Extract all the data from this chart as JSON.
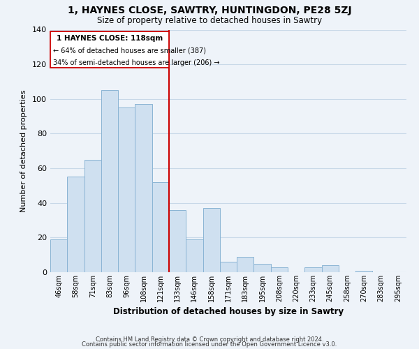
{
  "title": "1, HAYNES CLOSE, SAWTRY, HUNTINGDON, PE28 5ZJ",
  "subtitle": "Size of property relative to detached houses in Sawtry",
  "xlabel": "Distribution of detached houses by size in Sawtry",
  "ylabel": "Number of detached properties",
  "bar_labels": [
    "46sqm",
    "58sqm",
    "71sqm",
    "83sqm",
    "96sqm",
    "108sqm",
    "121sqm",
    "133sqm",
    "146sqm",
    "158sqm",
    "171sqm",
    "183sqm",
    "195sqm",
    "208sqm",
    "220sqm",
    "233sqm",
    "245sqm",
    "258sqm",
    "270sqm",
    "283sqm",
    "295sqm"
  ],
  "bar_values": [
    19,
    55,
    65,
    105,
    95,
    97,
    52,
    36,
    19,
    37,
    6,
    9,
    5,
    3,
    0,
    3,
    4,
    0,
    1,
    0,
    0
  ],
  "bar_color": "#cfe0f0",
  "bar_edge_color": "#8ab4d4",
  "vline_bar_index": 6,
  "vline_color": "#cc0000",
  "annotation_title": "1 HAYNES CLOSE: 118sqm",
  "annotation_line1": "← 64% of detached houses are smaller (387)",
  "annotation_line2": "34% of semi-detached houses are larger (206) →",
  "annotation_box_edge": "#cc0000",
  "ylim": [
    0,
    140
  ],
  "yticks": [
    0,
    20,
    40,
    60,
    80,
    100,
    120,
    140
  ],
  "footnote1": "Contains HM Land Registry data © Crown copyright and database right 2024.",
  "footnote2": "Contains public sector information licensed under the Open Government Licence v3.0.",
  "background_color": "#eef3f9",
  "plot_bg_color": "#eef3f9",
  "grid_color": "#c8d8e8"
}
